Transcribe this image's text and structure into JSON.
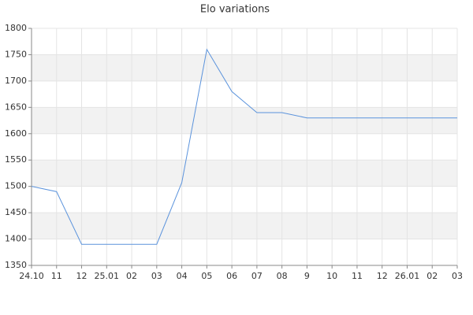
{
  "chart_data": {
    "type": "line",
    "title": "Elo variations",
    "categories": [
      "24.10",
      "11",
      "12",
      "25.01",
      "02",
      "03",
      "04",
      "05",
      "06",
      "07",
      "08",
      "9",
      "10",
      "11",
      "12",
      "26.01",
      "02",
      "03"
    ],
    "series": [
      {
        "name": "Elo",
        "color": "#5b93dc",
        "values": [
          1500,
          1490,
          1390,
          1390,
          1390,
          1390,
          1507,
          1760,
          1680,
          1640,
          1640,
          1630,
          1630,
          1630,
          1630,
          1630,
          1630,
          1630
        ]
      }
    ],
    "ylim": [
      1350,
      1800
    ],
    "yticks": [
      1350,
      1400,
      1450,
      1500,
      1550,
      1600,
      1650,
      1700,
      1750,
      1800
    ],
    "grid": true
  }
}
